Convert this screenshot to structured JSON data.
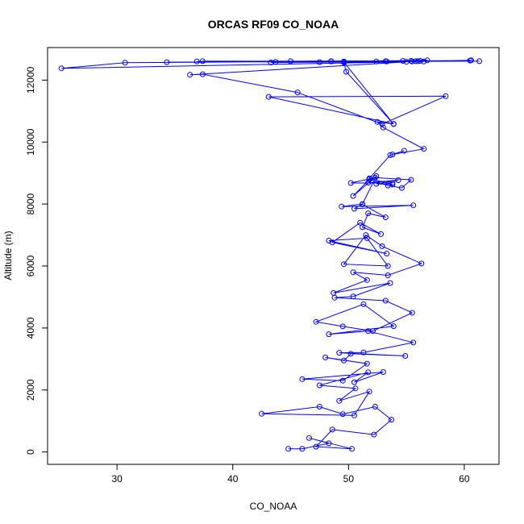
{
  "chart_data": {
    "type": "line",
    "title": "ORCAS RF09 CO_NOAA",
    "xlabel": "CO_NOAA",
    "ylabel": "Altitude (m)",
    "xlim": [
      24,
      63
    ],
    "ylim": [
      -400,
      13050
    ],
    "xticks": [
      30,
      40,
      50,
      60
    ],
    "yticks": [
      0,
      2000,
      4000,
      6000,
      8000,
      10000,
      12000
    ],
    "grid": false,
    "legend": "none",
    "series_color": "#0000ff",
    "series": [
      {
        "points": [
          [
            44.8,
            100
          ],
          [
            46.0,
            100
          ],
          [
            48.3,
            280
          ],
          [
            46.6,
            450
          ],
          [
            50.3,
            100
          ],
          [
            47.2,
            170
          ],
          [
            48.6,
            720
          ],
          [
            52.2,
            560
          ],
          [
            53.7,
            1040
          ],
          [
            52.3,
            1460
          ],
          [
            49.5,
            1220
          ],
          [
            47.5,
            1460
          ],
          [
            42.5,
            1230
          ],
          [
            50.5,
            1180
          ],
          [
            51.8,
            1950
          ],
          [
            49.2,
            1650
          ],
          [
            50.6,
            2050
          ],
          [
            47.5,
            2150
          ],
          [
            51.7,
            2570
          ],
          [
            50.5,
            2250
          ],
          [
            53.0,
            2580
          ],
          [
            46.0,
            2350
          ],
          [
            49.5,
            2300
          ],
          [
            51.6,
            2850
          ],
          [
            48.0,
            3050
          ],
          [
            49.6,
            2950
          ],
          [
            50.2,
            3170
          ],
          [
            54.9,
            3100
          ],
          [
            49.2,
            3200
          ],
          [
            51.3,
            3210
          ],
          [
            55.6,
            3530
          ],
          [
            51.7,
            3900
          ],
          [
            48.3,
            3800
          ],
          [
            53.9,
            4060
          ],
          [
            51.3,
            4770
          ],
          [
            47.2,
            4200
          ],
          [
            49.5,
            4050
          ],
          [
            52.1,
            3900
          ],
          [
            55.5,
            4490
          ],
          [
            53.2,
            4880
          ],
          [
            48.8,
            4980
          ],
          [
            50.4,
            5020
          ],
          [
            53.6,
            5450
          ],
          [
            48.7,
            5130
          ],
          [
            51.6,
            5550
          ],
          [
            50.4,
            5800
          ],
          [
            53.4,
            5700
          ],
          [
            56.3,
            6080
          ],
          [
            52.9,
            6640
          ],
          [
            51.5,
            7000
          ],
          [
            49.6,
            6060
          ],
          [
            53.4,
            6000
          ],
          [
            51.6,
            6900
          ],
          [
            48.3,
            6820
          ],
          [
            53.3,
            6400
          ],
          [
            48.6,
            6760
          ],
          [
            51.0,
            7400
          ],
          [
            52.8,
            7030
          ],
          [
            51.2,
            7250
          ],
          [
            51.7,
            7700
          ],
          [
            53.2,
            7570
          ],
          [
            51.2,
            7990
          ],
          [
            50.5,
            7850
          ],
          [
            55.6,
            7960
          ],
          [
            49.4,
            7920
          ],
          [
            51.2,
            8000
          ],
          [
            52.4,
            8900
          ],
          [
            50.4,
            8260
          ],
          [
            51.8,
            8800
          ],
          [
            53.4,
            8600
          ],
          [
            54.6,
            8520
          ],
          [
            55.4,
            8780
          ],
          [
            52.3,
            8850
          ],
          [
            50.2,
            8680
          ],
          [
            53.8,
            8680
          ],
          [
            51.7,
            8690
          ],
          [
            54.3,
            8770
          ],
          [
            52.4,
            8650
          ],
          [
            53.8,
            8630
          ],
          [
            51.8,
            8830
          ],
          [
            53.6,
            9580
          ],
          [
            54.8,
            9720
          ],
          [
            53.8,
            9600
          ],
          [
            56.5,
            9780
          ],
          [
            53.0,
            10470
          ],
          [
            52.5,
            10650
          ],
          [
            53.9,
            10590
          ],
          [
            43.1,
            11460
          ],
          [
            58.4,
            11480
          ],
          [
            52.9,
            10580
          ],
          [
            45.6,
            11600
          ],
          [
            37.4,
            12190
          ],
          [
            36.3,
            12170
          ],
          [
            55.0,
            12590
          ],
          [
            25.2,
            12380
          ],
          [
            30.7,
            12560
          ],
          [
            60.5,
            12630
          ],
          [
            34.3,
            12580
          ],
          [
            61.3,
            12610
          ],
          [
            36.9,
            12600
          ],
          [
            56.2,
            12620
          ],
          [
            37.4,
            12610
          ],
          [
            55.4,
            12620
          ],
          [
            43.3,
            12570
          ],
          [
            56.5,
            12600
          ],
          [
            43.7,
            12590
          ],
          [
            53.2,
            12610
          ],
          [
            45.0,
            12610
          ],
          [
            55.8,
            12610
          ],
          [
            47.5,
            12580
          ],
          [
            54.7,
            12620
          ],
          [
            48.5,
            12600
          ],
          [
            56.8,
            12640
          ],
          [
            49.6,
            12570
          ],
          [
            49.8,
            12270
          ],
          [
            53.9,
            10580
          ],
          [
            49.6,
            12580
          ],
          [
            52.4,
            12600
          ],
          [
            56.0,
            12610
          ],
          [
            49.6,
            12600
          ],
          [
            53.3,
            12600
          ],
          [
            48.5,
            12610
          ],
          [
            55.5,
            12600
          ],
          [
            60.6,
            12640
          ]
        ]
      }
    ]
  }
}
